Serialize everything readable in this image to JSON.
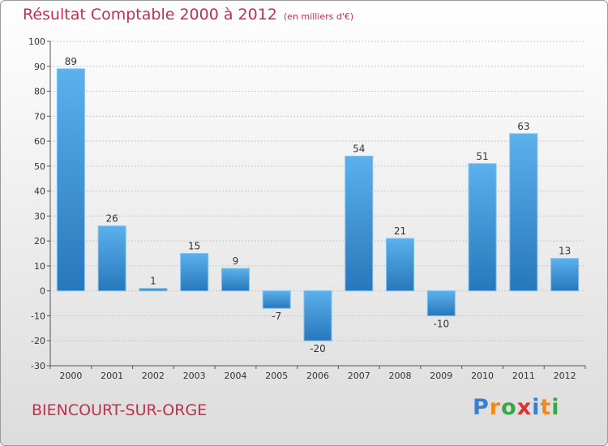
{
  "title": "Résultat Comptable 2000 à 2012",
  "unit_note": "(en milliers d'€)",
  "commune": "BIENCOURT-SUR-ORGE",
  "logo": {
    "letters": [
      "P",
      "r",
      "o",
      "x",
      "i",
      "t",
      "i"
    ],
    "colors": [
      "#3a7fd0",
      "#f08a1c",
      "#3aa64a",
      "#d8342c",
      "#3a7fd0",
      "#f08a1c",
      "#3aa64a"
    ]
  },
  "colors": {
    "title": "#c0304a",
    "bar_light": "#5cb0ec",
    "bar_dark": "#2778bb",
    "grid": "#c8c8c8"
  },
  "chart_data": {
    "type": "bar",
    "title": "Résultat Comptable 2000 à 2012",
    "categories": [
      "2000",
      "2001",
      "2002",
      "2003",
      "2004",
      "2005",
      "2006",
      "2007",
      "2008",
      "2009",
      "2010",
      "2011",
      "2012"
    ],
    "values": [
      89,
      26,
      1,
      15,
      9,
      -7,
      -20,
      54,
      21,
      -10,
      51,
      63,
      13
    ],
    "ylim": [
      -30,
      100
    ],
    "yticks": [
      -30,
      -20,
      -10,
      0,
      10,
      20,
      30,
      40,
      50,
      60,
      70,
      80,
      90,
      100
    ],
    "xlabel": "",
    "ylabel": "",
    "grid": true
  }
}
